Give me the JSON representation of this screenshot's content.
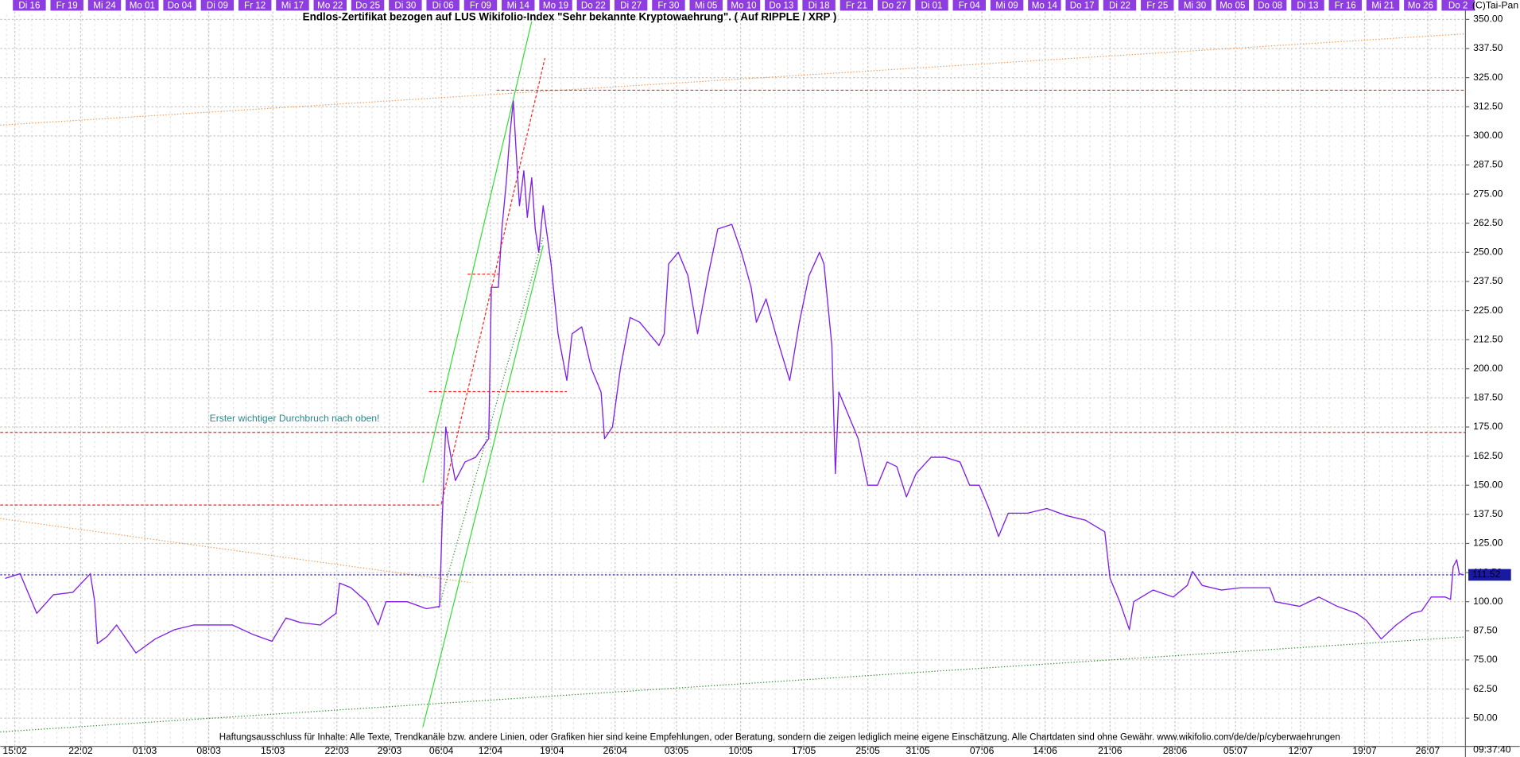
{
  "chart_data": {
    "type": "line",
    "title": "Endlos-Zertifikat bezogen auf LUS Wikifolio-Index \"Sehr bekannte Kryptowaehrung\". ( Auf RIPPLE / XRP )",
    "copyright": "(C)Tai-Pan",
    "annotation": "Erster wichtiger Durchbruch nach oben!",
    "footer": "Haftungsausschluss für Inhalte: Alle Texte, Trendkanäle bzw. andere Linien, oder Grafiken hier sind keine Empfehlungen, oder Beratung, sondern die zeigen lediglich meine eigene Einschätzung. Alle Chartdaten sind ohne Gewähr.  www.wikifolio.com/de/de/p/cyberwaehrungen",
    "time": "09:37:40",
    "top_labels": [
      "Di 16",
      "Fr 19",
      "Mi 24",
      "Mo 01",
      "Do 04",
      "Di 09",
      "Fr 12",
      "Mi 17",
      "Mo 22",
      "Do 25",
      "Di 30",
      "Di 06",
      "Fr 09",
      "Mi 14",
      "Mo 19",
      "Do 22",
      "Di 27",
      "Fr 30",
      "Mi 05",
      "Mo 10",
      "Do 13",
      "Di 18",
      "Fr 21",
      "Do 27",
      "Di 01",
      "Fr 04",
      "Mi 09",
      "Mo 14",
      "Do 17",
      "Di 22",
      "Fr 25",
      "Mi 30",
      "Mo 05",
      "Do 08",
      "Di 13",
      "Fr 16",
      "Mi 21",
      "Mo 26",
      "Do 2"
    ],
    "color": "#7f1fe8",
    "x": [
      -1.1,
      0.6,
      2.5,
      4.4,
      6.6,
      8.6,
      9.1,
      9.4,
      10.5,
      11.6,
      13.8,
      16.0,
      18.2,
      20.4,
      22.6,
      24.8,
      27.1,
      29.3,
      30.9,
      32.6,
      34.8,
      36.6,
      37.0,
      38.3,
      40.1,
      41.4,
      42.3,
      44.7,
      46.9,
      48.4,
      48.7,
      49.1,
      49.8,
      50.2,
      51.3,
      52.5,
      53.6,
      54.0,
      54.3,
      55.1,
      55.5,
      56.0,
      56.4,
      56.8,
      57.1,
      57.5,
      58.0,
      58.4,
      58.9,
      59.3,
      59.7,
      60.2,
      61.1,
      61.9,
      62.9,
      63.5,
      64.6,
      65.7,
      66.8,
      67.2,
      68.1,
      69.0,
      70.1,
      71.2,
      72.3,
      73.4,
      74.0,
      74.5,
      75.6,
      76.7,
      77.8,
      79.0,
      80.1,
      81.7,
      82.8,
      83.9,
      84.5,
      85.6,
      86.7,
      88.3,
      89.4,
      90.5,
      91.7,
      92.2,
      93.1,
      93.5,
      93.9,
      95.0,
      96.1,
      97.2,
      98.3,
      99.4,
      100.5,
      101.6,
      102.7,
      104.4,
      106.0,
      107.7,
      108.8,
      109.9,
      111.0,
      112.1,
      113.2,
      115.4,
      117.6,
      119.8,
      122.0,
      124.2,
      124.8,
      125.9,
      127.0,
      127.5,
      129.7,
      132.0,
      133.6,
      134.2,
      135.3,
      137.5,
      139.7,
      143.0,
      143.6,
      146.4,
      148.6,
      150.7,
      152.9,
      154.0,
      155.7,
      157.4,
      159.2,
      160.3,
      161.4,
      163.0,
      163.6,
      163.9,
      164.3,
      164.6,
      165.1
    ],
    "values": [
      110,
      112,
      95,
      103,
      104,
      112,
      100,
      82,
      85,
      90,
      78,
      84,
      88,
      90,
      90,
      90,
      86,
      83,
      93,
      91,
      90,
      95,
      108,
      106,
      100,
      90,
      100,
      100,
      97,
      98,
      135,
      175,
      160,
      152,
      160,
      162,
      168,
      170,
      235,
      235,
      260,
      280,
      300,
      315,
      295,
      270,
      285,
      265,
      282,
      260,
      250,
      270,
      245,
      215,
      195,
      215,
      218,
      200,
      190,
      170,
      175,
      200,
      222,
      220,
      215,
      210,
      215,
      245,
      250,
      240,
      215,
      240,
      260,
      262,
      250,
      235,
      220,
      230,
      215,
      195,
      220,
      240,
      250,
      245,
      210,
      155,
      190,
      180,
      170,
      150,
      150,
      160,
      158,
      145,
      155,
      162,
      162,
      160,
      150,
      150,
      140,
      128,
      138,
      138,
      140,
      137,
      135,
      130,
      110,
      100,
      88,
      100,
      105,
      102,
      107,
      113,
      107,
      105,
      106,
      106,
      100,
      98,
      102,
      98,
      95,
      92,
      84,
      90,
      95,
      96,
      102,
      102,
      101,
      115,
      118,
      112,
      111.52
    ],
    "last_value": 111.52,
    "xlim": [
      -1.66,
      165.3
    ],
    "xticks": [
      {
        "value": 0,
        "label": "15:02"
      },
      {
        "value": 7.5,
        "label": "22:02"
      },
      {
        "value": 14.8,
        "label": "01:03"
      },
      {
        "value": 22.1,
        "label": "08:03"
      },
      {
        "value": 29.4,
        "label": "15:03"
      },
      {
        "value": 36.7,
        "label": "22:03"
      },
      {
        "value": 42.7,
        "label": "29:03"
      },
      {
        "value": 48.6,
        "label": "06:04"
      },
      {
        "value": 54.2,
        "label": "12:04"
      },
      {
        "value": 61.2,
        "label": "19:04"
      },
      {
        "value": 68.4,
        "label": "26:04"
      },
      {
        "value": 75.4,
        "label": "03:05"
      },
      {
        "value": 82.7,
        "label": "10:05"
      },
      {
        "value": 89.9,
        "label": "17:05"
      },
      {
        "value": 97.2,
        "label": "25:05"
      },
      {
        "value": 102.9,
        "label": "31:05"
      },
      {
        "value": 110.2,
        "label": "07:06"
      },
      {
        "value": 117.4,
        "label": "14:06"
      },
      {
        "value": 124.8,
        "label": "21:06"
      },
      {
        "value": 132.2,
        "label": "28:06"
      },
      {
        "value": 139.1,
        "label": "05:07"
      },
      {
        "value": 146.5,
        "label": "12:07"
      },
      {
        "value": 153.8,
        "label": "19:07"
      },
      {
        "value": 161.0,
        "label": "26:07"
      }
    ],
    "ylim": [
      37.9,
      355
    ],
    "yticks": [
      {
        "value": 50,
        "label": "50.00"
      },
      {
        "value": 62.5,
        "label": "62.50"
      },
      {
        "value": 75,
        "label": "75.00"
      },
      {
        "value": 87.5,
        "label": "87.50"
      },
      {
        "value": 100,
        "label": "100.00"
      },
      {
        "value": 112.5,
        "label": "112.50"
      },
      {
        "value": 125,
        "label": "125.00"
      },
      {
        "value": 137.5,
        "label": "137.50"
      },
      {
        "value": 150,
        "label": "150.00"
      },
      {
        "value": 162.5,
        "label": "162.50"
      },
      {
        "value": 175,
        "label": "175.00"
      },
      {
        "value": 187.5,
        "label": "187.50"
      },
      {
        "value": 200,
        "label": "200.00"
      },
      {
        "value": 212.5,
        "label": "212.50"
      },
      {
        "value": 225,
        "label": "225.00"
      },
      {
        "value": 237.5,
        "label": "237.50"
      },
      {
        "value": 250,
        "label": "250.00"
      },
      {
        "value": 262.5,
        "label": "262.50"
      },
      {
        "value": 275,
        "label": "275.00"
      },
      {
        "value": 287.5,
        "label": "287.50"
      },
      {
        "value": 300,
        "label": "300.00"
      },
      {
        "value": 312.5,
        "label": "312.50"
      },
      {
        "value": 325,
        "label": "325.00"
      },
      {
        "value": 337.5,
        "label": "337.50"
      },
      {
        "value": 350,
        "label": "350.00"
      }
    ],
    "grid": true,
    "trendlines": [
      {
        "color": "#ff8c3c",
        "style": "dotted",
        "points": [
          [
            -1.66,
            304.6
          ],
          [
            165.3,
            343.8
          ]
        ]
      },
      {
        "color": "#ff8c3c",
        "style": "dotted",
        "points": [
          [
            -1.66,
            135.7
          ],
          [
            51.9,
            108.2
          ]
        ]
      },
      {
        "color": "#ff2020",
        "style": "dashed",
        "points": [
          [
            54.9,
            319.6
          ],
          [
            165.3,
            319.6
          ]
        ]
      },
      {
        "color": "#ff2020",
        "style": "dashed",
        "points": [
          [
            -1.66,
            172.7
          ],
          [
            165.3,
            172.7
          ]
        ]
      },
      {
        "color": "#ff2020",
        "style": "dashed",
        "points": [
          [
            -1.66,
            141.5
          ],
          [
            48.6,
            141.5
          ]
        ]
      },
      {
        "color": "#ff2020",
        "style": "dashed",
        "points": [
          [
            47.2,
            190.2
          ],
          [
            62.9,
            190.2
          ]
        ]
      },
      {
        "color": "#ff2020",
        "style": "dashed",
        "points": [
          [
            51.6,
            240.6
          ],
          [
            55.5,
            240.6
          ]
        ]
      },
      {
        "color": "#ff2020",
        "style": "dashed",
        "points": [
          [
            48.6,
            141.9
          ],
          [
            60.4,
            333.4
          ]
        ]
      },
      {
        "color": "#33dd33",
        "style": "solid",
        "points": [
          [
            46.5,
            151.1
          ],
          [
            58.9,
            349.2
          ]
        ]
      },
      {
        "color": "#33dd33",
        "style": "solid",
        "points": [
          [
            46.5,
            46.2
          ],
          [
            60.2,
            253.0
          ]
        ]
      },
      {
        "color": "#228822",
        "style": "dotted",
        "points": [
          [
            48.3,
            97.3
          ],
          [
            60.2,
            256.4
          ]
        ]
      },
      {
        "color": "#228822",
        "style": "dotted",
        "points": [
          [
            -1.66,
            44.1
          ],
          [
            165.3,
            84.9
          ]
        ]
      }
    ]
  }
}
